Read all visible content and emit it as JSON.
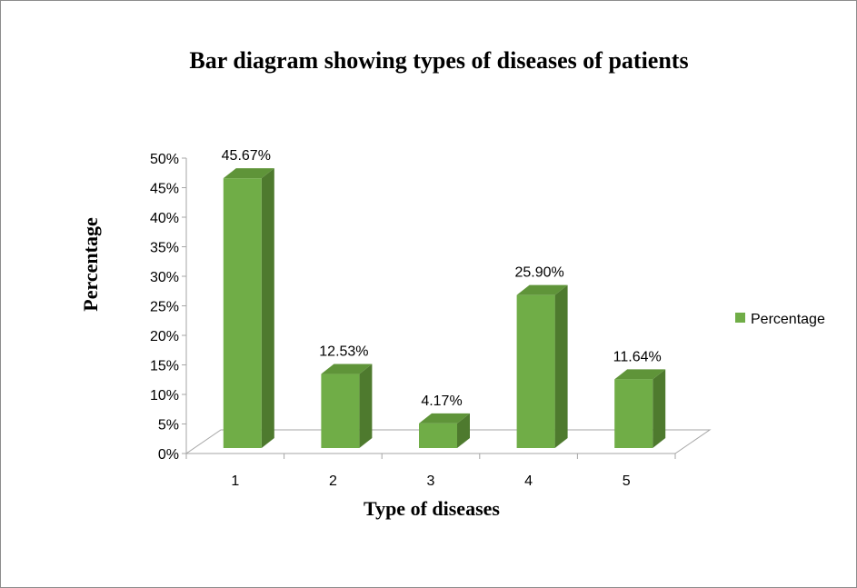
{
  "chart_data": {
    "type": "bar",
    "title": "Bar diagram showing types of diseases of patients",
    "xlabel": "Type of diseases",
    "ylabel": "Percentage",
    "categories": [
      "1",
      "2",
      "3",
      "4",
      "5"
    ],
    "series": [
      {
        "name": "Percentage",
        "values": [
          45.67,
          12.53,
          4.17,
          25.9,
          11.64
        ],
        "labels": [
          "45.67%",
          "12.53%",
          "4.17%",
          "25.90%",
          "11.64%"
        ]
      }
    ],
    "ylim": [
      0,
      50
    ],
    "yticks": [
      "0%",
      "5%",
      "10%",
      "15%",
      "20%",
      "25%",
      "30%",
      "35%",
      "40%",
      "45%",
      "50%"
    ],
    "legend_position": "right",
    "grid": false,
    "three_d": true,
    "colors": {
      "bar_front": "#70ad47",
      "bar_side": "#4e7a2e",
      "bar_top": "#5f9439",
      "floor_line": "#a6a6a6",
      "axis_line": "#a6a6a6"
    }
  }
}
